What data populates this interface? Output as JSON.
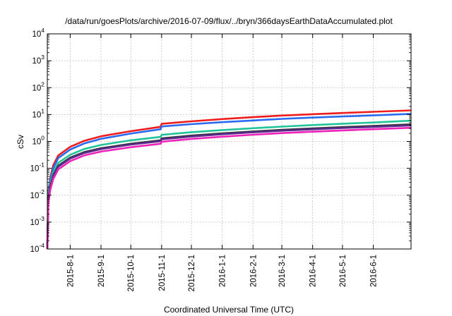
{
  "chart_data": {
    "type": "line",
    "title": "/data/run/goesPlots/archive/2016-07-09/flux/../bryn/366daysEarthDataAccumulated.plot",
    "xlabel": "Coordinated Universal Time (UTC)",
    "ylabel": "cSv",
    "yscale": "log",
    "ylim": [
      0.0001,
      10000
    ],
    "xlim": [
      "2015-07-09",
      "2016-07-09"
    ],
    "grid": true,
    "legend": "none",
    "y_ticks": [
      {
        "base": "10",
        "exp": "-4",
        "value": 0.0001
      },
      {
        "base": "10",
        "exp": "-3",
        "value": 0.001
      },
      {
        "base": "10",
        "exp": "-2",
        "value": 0.01
      },
      {
        "base": "10",
        "exp": "-1",
        "value": 0.1
      },
      {
        "base": "10",
        "exp": "0",
        "value": 1
      },
      {
        "base": "10",
        "exp": "1",
        "value": 10
      },
      {
        "base": "10",
        "exp": "2",
        "value": 100
      },
      {
        "base": "10",
        "exp": "3",
        "value": 1000
      },
      {
        "base": "10",
        "exp": "4",
        "value": 10000
      }
    ],
    "x_ticks": [
      {
        "label": "2015-8-1",
        "date": "2015-08-01"
      },
      {
        "label": "2015-9-1",
        "date": "2015-09-01"
      },
      {
        "label": "2015-10-1",
        "date": "2015-10-01"
      },
      {
        "label": "2015-11-1",
        "date": "2015-11-01"
      },
      {
        "label": "2015-12-1",
        "date": "2015-12-01"
      },
      {
        "label": "2016-1-1",
        "date": "2016-01-01"
      },
      {
        "label": "2016-2-1",
        "date": "2016-02-01"
      },
      {
        "label": "2016-3-1",
        "date": "2016-03-01"
      },
      {
        "label": "2016-4-1",
        "date": "2016-04-01"
      },
      {
        "label": "2016-5-1",
        "date": "2016-05-01"
      },
      {
        "label": "2016-6-1",
        "date": "2016-06-01"
      }
    ],
    "series": [
      {
        "color": "#ee1c1c",
        "points": [
          [
            "2015-07-09",
            0.0001
          ],
          [
            "2015-07-10",
            0.013
          ],
          [
            "2015-07-12",
            0.045
          ],
          [
            "2015-07-15",
            0.13
          ],
          [
            "2015-07-20",
            0.3
          ],
          [
            "2015-08-01",
            0.63
          ],
          [
            "2015-08-15",
            1.05
          ],
          [
            "2015-09-01",
            1.55
          ],
          [
            "2015-10-01",
            2.4
          ],
          [
            "2015-10-31",
            3.5
          ],
          [
            "2015-11-01",
            4.5
          ],
          [
            "2015-12-01",
            5.6
          ],
          [
            "2016-01-01",
            6.8
          ],
          [
            "2016-02-01",
            8.0
          ],
          [
            "2016-03-01",
            9.2
          ],
          [
            "2016-04-01",
            10.3
          ],
          [
            "2016-05-01",
            11.4
          ],
          [
            "2016-06-01",
            12.6
          ],
          [
            "2016-07-09",
            14.3
          ]
        ]
      },
      {
        "color": "#2a6af0",
        "points": [
          [
            "2015-07-09",
            0.0001
          ],
          [
            "2015-07-10",
            0.011
          ],
          [
            "2015-07-12",
            0.038
          ],
          [
            "2015-07-15",
            0.1
          ],
          [
            "2015-07-20",
            0.24
          ],
          [
            "2015-08-01",
            0.5
          ],
          [
            "2015-08-15",
            0.84
          ],
          [
            "2015-09-01",
            1.25
          ],
          [
            "2015-10-01",
            1.95
          ],
          [
            "2015-10-31",
            2.85
          ],
          [
            "2015-11-01",
            3.6
          ],
          [
            "2015-12-01",
            4.4
          ],
          [
            "2016-01-01",
            5.2
          ],
          [
            "2016-02-01",
            6.0
          ],
          [
            "2016-03-01",
            6.9
          ],
          [
            "2016-04-01",
            7.7
          ],
          [
            "2016-05-01",
            8.5
          ],
          [
            "2016-06-01",
            9.3
          ],
          [
            "2016-07-09",
            10.6
          ]
        ]
      },
      {
        "color": "#22c39a",
        "points": [
          [
            "2015-07-09",
            0.0001
          ],
          [
            "2015-07-10",
            0.0085
          ],
          [
            "2015-07-12",
            0.028
          ],
          [
            "2015-07-15",
            0.07
          ],
          [
            "2015-07-20",
            0.16
          ],
          [
            "2015-08-01",
            0.32
          ],
          [
            "2015-08-15",
            0.52
          ],
          [
            "2015-09-01",
            0.74
          ],
          [
            "2015-10-01",
            1.1
          ],
          [
            "2015-10-31",
            1.47
          ],
          [
            "2015-11-01",
            1.75
          ],
          [
            "2015-12-01",
            2.2
          ],
          [
            "2016-01-01",
            2.65
          ],
          [
            "2016-02-01",
            3.1
          ],
          [
            "2016-03-01",
            3.55
          ],
          [
            "2016-04-01",
            4.05
          ],
          [
            "2016-05-01",
            4.55
          ],
          [
            "2016-06-01",
            5.05
          ],
          [
            "2016-07-09",
            5.9
          ]
        ]
      },
      {
        "color": "#333333",
        "points": [
          [
            "2015-07-09",
            0.0001
          ],
          [
            "2015-07-10",
            0.0068
          ],
          [
            "2015-07-12",
            0.022
          ],
          [
            "2015-07-15",
            0.055
          ],
          [
            "2015-07-20",
            0.125
          ],
          [
            "2015-08-01",
            0.25
          ],
          [
            "2015-08-15",
            0.4
          ],
          [
            "2015-09-01",
            0.56
          ],
          [
            "2015-10-01",
            0.82
          ],
          [
            "2015-10-31",
            1.1
          ],
          [
            "2015-11-01",
            1.3
          ],
          [
            "2015-12-01",
            1.65
          ],
          [
            "2016-01-01",
            2.0
          ],
          [
            "2016-02-01",
            2.35
          ],
          [
            "2016-03-01",
            2.7
          ],
          [
            "2016-04-01",
            3.05
          ],
          [
            "2016-05-01",
            3.4
          ],
          [
            "2016-06-01",
            3.75
          ],
          [
            "2016-07-09",
            4.3
          ]
        ]
      },
      {
        "color": "#5a2a8e",
        "points": [
          [
            "2015-07-09",
            0.0001
          ],
          [
            "2015-07-10",
            0.0062
          ],
          [
            "2015-07-12",
            0.02
          ],
          [
            "2015-07-15",
            0.05
          ],
          [
            "2015-07-20",
            0.115
          ],
          [
            "2015-08-01",
            0.23
          ],
          [
            "2015-08-15",
            0.37
          ],
          [
            "2015-09-01",
            0.52
          ],
          [
            "2015-10-01",
            0.76
          ],
          [
            "2015-10-31",
            1.02
          ],
          [
            "2015-11-01",
            1.2
          ],
          [
            "2015-12-01",
            1.52
          ],
          [
            "2016-01-01",
            1.85
          ],
          [
            "2016-02-01",
            2.18
          ],
          [
            "2016-03-01",
            2.5
          ],
          [
            "2016-04-01",
            2.82
          ],
          [
            "2016-05-01",
            3.15
          ],
          [
            "2016-06-01",
            3.47
          ],
          [
            "2016-07-09",
            3.95
          ]
        ]
      },
      {
        "color": "#ee22b8",
        "points": [
          [
            "2015-07-09",
            0.0001
          ],
          [
            "2015-07-10",
            0.005
          ],
          [
            "2015-07-12",
            0.016
          ],
          [
            "2015-07-15",
            0.04
          ],
          [
            "2015-07-20",
            0.092
          ],
          [
            "2015-08-01",
            0.185
          ],
          [
            "2015-08-15",
            0.3
          ],
          [
            "2015-09-01",
            0.42
          ],
          [
            "2015-10-01",
            0.61
          ],
          [
            "2015-10-31",
            0.82
          ],
          [
            "2015-11-01",
            0.97
          ],
          [
            "2015-12-01",
            1.24
          ],
          [
            "2016-01-01",
            1.5
          ],
          [
            "2016-02-01",
            1.77
          ],
          [
            "2016-03-01",
            2.04
          ],
          [
            "2016-04-01",
            2.3
          ],
          [
            "2016-05-01",
            2.57
          ],
          [
            "2016-06-01",
            2.84
          ],
          [
            "2016-07-09",
            3.2
          ]
        ]
      }
    ]
  }
}
